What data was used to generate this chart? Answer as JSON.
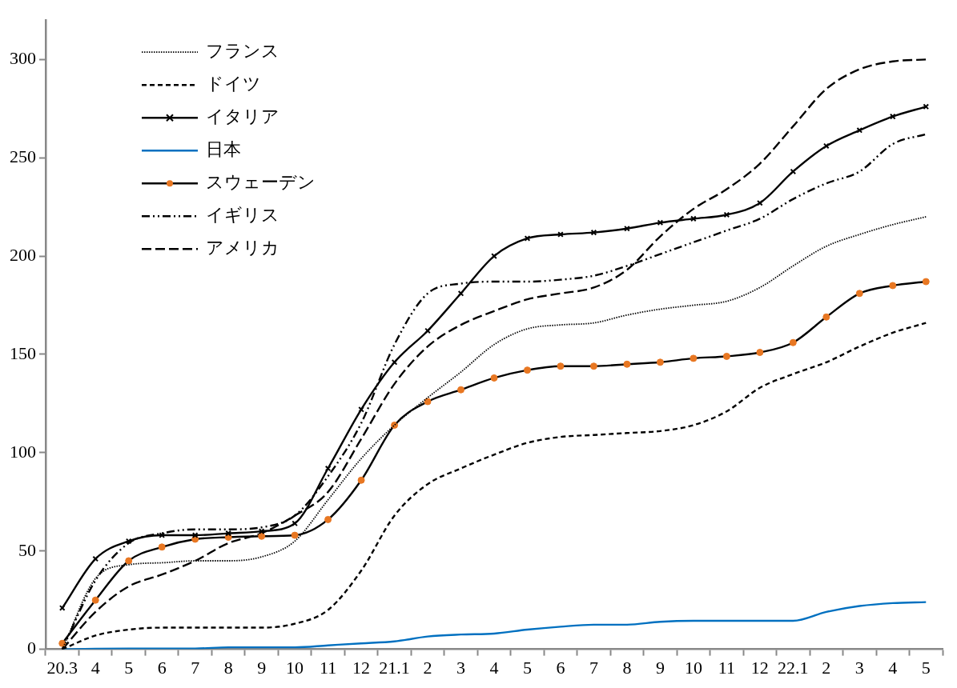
{
  "chart_data": {
    "type": "line",
    "categories": [
      "20.3",
      "4",
      "5",
      "6",
      "7",
      "8",
      "9",
      "10",
      "11",
      "12",
      "21.1",
      "2",
      "3",
      "4",
      "5",
      "6",
      "7",
      "8",
      "9",
      "10",
      "11",
      "12",
      "22.1",
      "2",
      "3",
      "4",
      "5"
    ],
    "ylim": [
      0,
      320
    ],
    "yticks": [
      0,
      50,
      100,
      150,
      200,
      250,
      300
    ],
    "grid": false,
    "legend": "top left",
    "series": [
      {
        "name": "フランス",
        "color": "#000000",
        "line_style": "dotted",
        "marker": "none",
        "values": [
          0,
          36,
          43,
          44,
          45,
          45,
          47,
          55,
          76,
          97,
          114,
          128,
          141,
          155,
          163,
          165,
          166,
          170,
          173,
          175,
          177,
          184,
          195,
          205,
          211,
          216,
          220
        ]
      },
      {
        "name": "ドイツ",
        "color": "#000000",
        "line_style": "dashed",
        "marker": "none",
        "values": [
          0,
          7,
          10,
          11,
          11,
          11,
          11,
          13,
          20,
          40,
          68,
          84,
          92,
          99,
          105,
          108,
          109,
          110,
          111,
          114,
          121,
          133,
          140,
          146,
          154,
          161,
          166
        ]
      },
      {
        "name": "イタリア",
        "color": "#000000",
        "line_style": "solid",
        "marker": "cross",
        "values": [
          21,
          46,
          55,
          58,
          58,
          59,
          60,
          64,
          92,
          122,
          146,
          162,
          181,
          200,
          209,
          211,
          212,
          214,
          217,
          219,
          221,
          227,
          243,
          256,
          264,
          271,
          276
        ]
      },
      {
        "name": "日本",
        "color": "#0070c0",
        "line_style": "solid",
        "marker": "none",
        "values": [
          0,
          0.3,
          0.4,
          0.4,
          0.4,
          1,
          1,
          1,
          2,
          3,
          4,
          6.5,
          7.5,
          8,
          10,
          11.5,
          12.5,
          12.5,
          14,
          14.5,
          14.5,
          14.5,
          14.5,
          19,
          22,
          23.5,
          24
        ]
      },
      {
        "name": "スウェーデン",
        "color": "#000000",
        "colors": [
          "#e87722",
          "#e87722",
          "#e87722",
          "#e87722",
          "#e87722",
          "#e87722",
          "#e87722",
          "#e87722",
          "#e87722",
          "#e87722",
          "#e87722",
          "#e87722",
          "#e87722",
          "#e87722",
          "#e87722",
          "#e87722",
          "#e87722",
          "#e87722",
          "#e87722",
          "#e87722",
          "#e87722",
          "#e87722",
          "#e87722",
          "#e87722",
          "#e87722",
          "#e87722",
          "#e87722"
        ],
        "line_style": "solid",
        "marker": "circle",
        "values": [
          3,
          25,
          45,
          52,
          56,
          57,
          57.5,
          58,
          66,
          86,
          114,
          126,
          132,
          138,
          142,
          144,
          144,
          145,
          146,
          148,
          149,
          151,
          156,
          169,
          181,
          185,
          187
        ]
      },
      {
        "name": "イギリス",
        "color": "#000000",
        "line_style": "dashdot",
        "marker": "none",
        "values": [
          0,
          35,
          54,
          59,
          61,
          61,
          62,
          68,
          88,
          115,
          155,
          181,
          186,
          187,
          187,
          188,
          190,
          195,
          201,
          207,
          213,
          219,
          229,
          237,
          243,
          257,
          262
        ]
      },
      {
        "name": "アメリカ",
        "color": "#000000",
        "line_style": "longdash",
        "marker": "none",
        "values": [
          0,
          19,
          32,
          38,
          45,
          54,
          59,
          68,
          80,
          107,
          135,
          154,
          165,
          172,
          178,
          181,
          184,
          193,
          210,
          224,
          234,
          247,
          266,
          285,
          295,
          299,
          300
        ]
      }
    ]
  }
}
